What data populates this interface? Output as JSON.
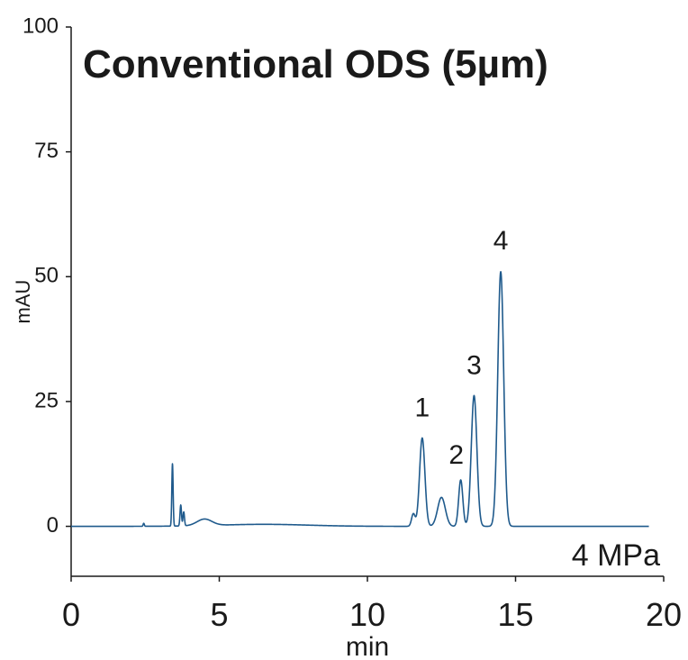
{
  "chart_data": {
    "type": "line",
    "title": "Conventional ODS (5µm)",
    "annotation": "4 MPa",
    "xlabel": "min",
    "ylabel": "mAU",
    "xlim": [
      0,
      20
    ],
    "ylim": [
      -10,
      100
    ],
    "x_ticks": [
      "0",
      "5",
      "10",
      "15",
      "20"
    ],
    "y_ticks": [
      "0",
      "25",
      "50",
      "75",
      "100"
    ],
    "grid": false,
    "line_color": "#1f5a8c",
    "baseline": {
      "x_start": 0,
      "x_end": 19.5,
      "y": 0
    },
    "features": [
      {
        "center": 2.45,
        "height": 0.6,
        "width": 0.02
      },
      {
        "center": 3.42,
        "height": 12.5,
        "width": 0.022
      },
      {
        "center": 3.7,
        "height": 4.2,
        "width": 0.025
      },
      {
        "center": 3.8,
        "height": 2.8,
        "width": 0.025
      },
      {
        "center": 4.5,
        "height": 1.3,
        "width": 0.25
      },
      {
        "center": 6.5,
        "height": 0.4,
        "width": 1.5
      },
      {
        "center": 11.55,
        "height": 2.5,
        "width": 0.06
      },
      {
        "center": 11.85,
        "height": 17.7,
        "width": 0.09
      },
      {
        "center": 12.5,
        "height": 5.8,
        "width": 0.13
      },
      {
        "center": 13.15,
        "height": 9.3,
        "width": 0.07
      },
      {
        "center": 13.6,
        "height": 26.2,
        "width": 0.095
      },
      {
        "center": 14.5,
        "height": 51.0,
        "width": 0.1
      }
    ],
    "peak_labels": [
      {
        "label": "1",
        "x": 11.85,
        "y": 22
      },
      {
        "label": "2",
        "x": 13.0,
        "y": 12.5
      },
      {
        "label": "3",
        "x": 13.6,
        "y": 30.5
      },
      {
        "label": "4",
        "x": 14.5,
        "y": 55.5
      }
    ]
  }
}
